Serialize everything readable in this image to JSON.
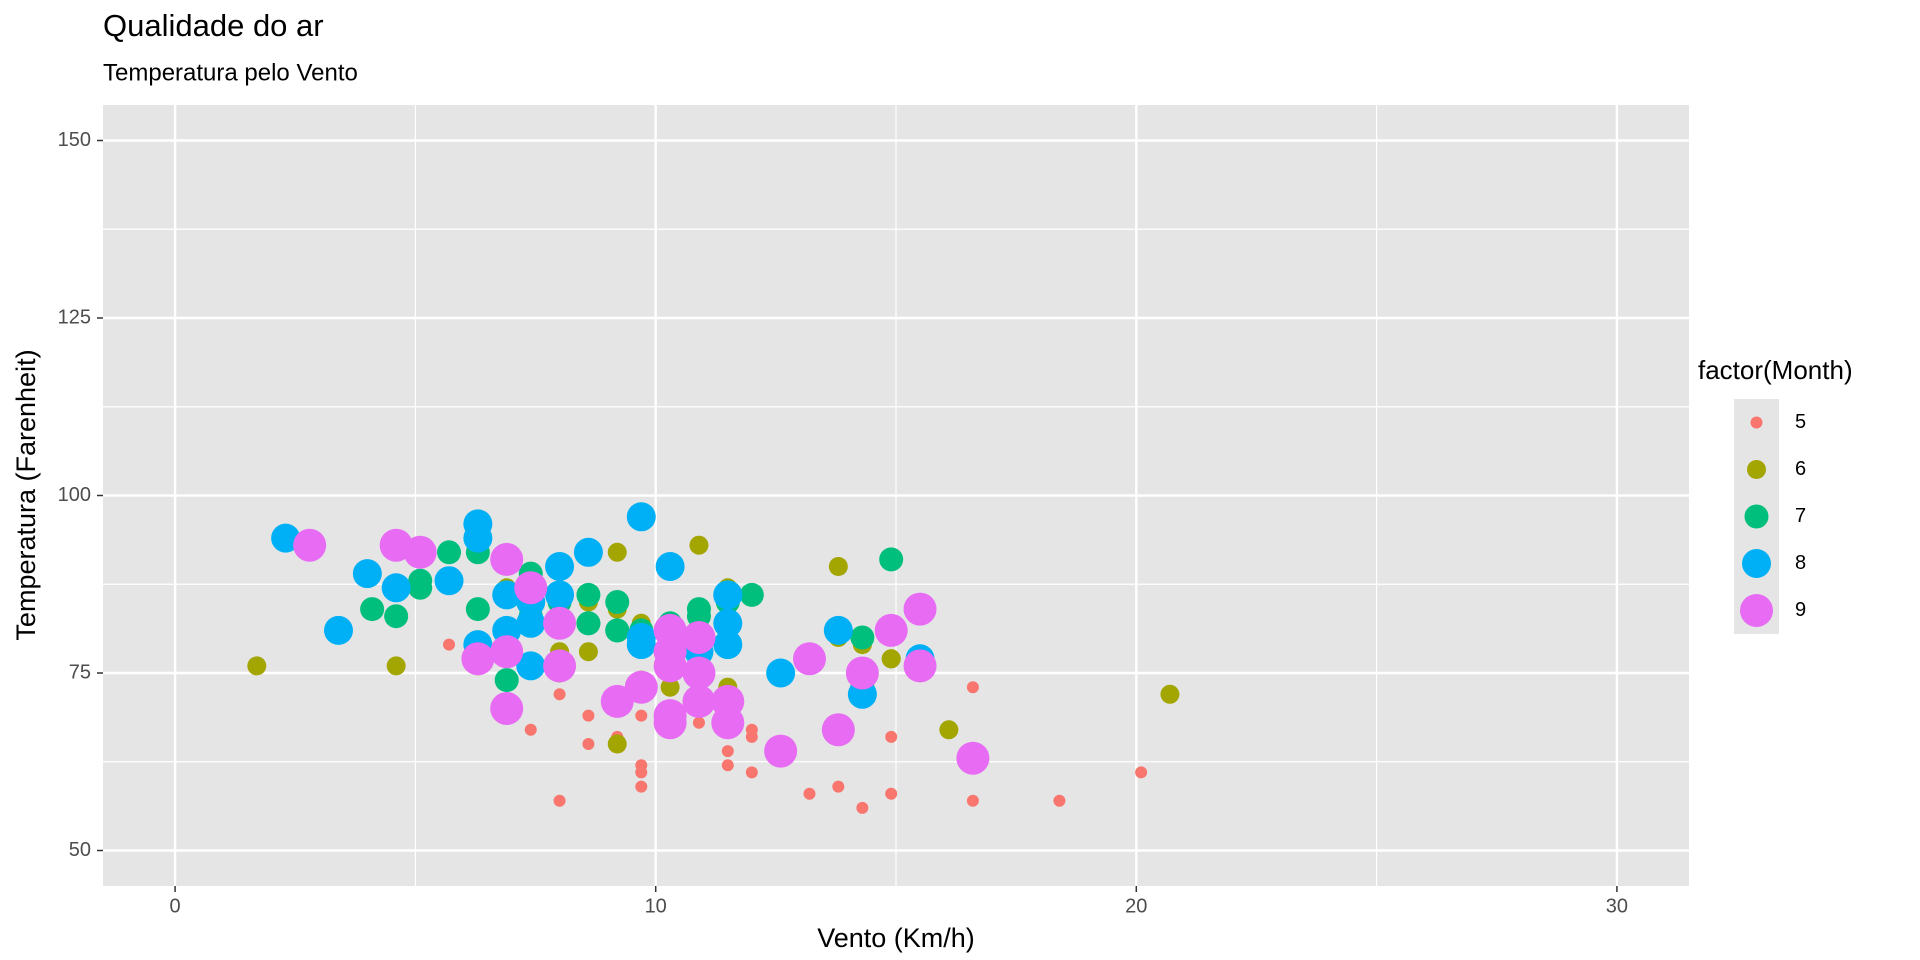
{
  "chart_data": {
    "type": "scatter",
    "title": "Qualidade do ar",
    "subtitle": "Temperatura pelo Vento",
    "x_label": "Vento (Km/h)",
    "y_label": "Temperatura (Farenheit)",
    "legend_title": "factor(Month)",
    "legend": "right",
    "grid": true,
    "xlim": [
      -1.5,
      31.5
    ],
    "ylim": [
      45,
      155
    ],
    "xticks": [
      0,
      10,
      20,
      30
    ],
    "yticks": [
      50,
      75,
      100,
      125,
      150
    ],
    "series": [
      {
        "name": "5",
        "color": "#F8766D",
        "x": [
          7.4,
          8.0,
          12.6,
          11.5,
          14.3,
          14.9,
          8.6,
          13.8,
          20.1,
          8.6,
          6.9,
          9.7,
          9.2,
          10.9,
          13.2,
          11.5,
          12.0,
          18.4,
          11.5,
          9.7,
          9.7,
          16.6,
          9.7,
          12.0,
          16.6,
          14.9,
          8.0,
          12.0,
          14.9,
          5.7,
          7.4
        ],
        "values": [
          67,
          72,
          74,
          62,
          56,
          66,
          65,
          59,
          61,
          69,
          74,
          69,
          66,
          68,
          58,
          64,
          66,
          57,
          68,
          62,
          59,
          73,
          61,
          61,
          57,
          58,
          57,
          67,
          81,
          79,
          76
        ]
      },
      {
        "name": "6",
        "color": "#A3A500",
        "x": [
          8.6,
          9.7,
          16.1,
          9.2,
          8.6,
          14.3,
          9.7,
          6.9,
          13.8,
          11.5,
          10.9,
          9.2,
          8.0,
          13.8,
          11.5,
          14.9,
          20.7,
          9.2,
          11.5,
          10.3,
          6.3,
          1.7,
          4.6,
          6.3,
          8.0,
          8.0,
          10.3,
          11.5,
          14.9,
          8.0
        ],
        "values": [
          78,
          74,
          67,
          84,
          85,
          79,
          82,
          87,
          90,
          87,
          93,
          92,
          82,
          80,
          79,
          77,
          72,
          65,
          73,
          76,
          77,
          76,
          76,
          76,
          75,
          78,
          73,
          80,
          77,
          83
        ]
      },
      {
        "name": "7",
        "color": "#00BF7D",
        "x": [
          4.1,
          9.2,
          9.2,
          10.9,
          4.6,
          10.9,
          5.1,
          6.3,
          5.7,
          7.4,
          8.6,
          14.3,
          14.9,
          14.9,
          14.3,
          6.9,
          10.3,
          6.3,
          5.1,
          11.5,
          6.9,
          9.7,
          11.5,
          8.6,
          8.0,
          8.6,
          12.0,
          7.4,
          7.4,
          7.4,
          9.2
        ],
        "values": [
          84,
          85,
          81,
          84,
          83,
          83,
          88,
          92,
          92,
          89,
          82,
          73,
          81,
          91,
          80,
          81,
          82,
          84,
          87,
          85,
          74,
          81,
          82,
          86,
          85,
          82,
          86,
          88,
          86,
          83,
          81
        ]
      },
      {
        "name": "8",
        "color": "#00B0F6",
        "x": [
          6.9,
          13.8,
          7.4,
          6.9,
          7.4,
          4.6,
          4.0,
          10.3,
          8.0,
          8.6,
          11.5,
          11.5,
          11.5,
          9.7,
          11.5,
          10.3,
          6.3,
          7.4,
          10.9,
          10.3,
          15.5,
          14.3,
          12.6,
          9.7,
          3.4,
          8.0,
          5.7,
          9.7,
          2.3,
          6.3,
          6.3
        ],
        "values": [
          81,
          81,
          82,
          86,
          85,
          87,
          89,
          90,
          90,
          92,
          86,
          86,
          82,
          80,
          79,
          77,
          79,
          76,
          78,
          78,
          77,
          72,
          75,
          79,
          81,
          86,
          88,
          97,
          94,
          96,
          94
        ]
      },
      {
        "name": "9",
        "color": "#E76BF3",
        "x": [
          6.9,
          5.1,
          2.8,
          4.6,
          7.4,
          15.5,
          10.9,
          10.3,
          10.9,
          9.7,
          14.9,
          15.5,
          6.3,
          10.9,
          11.5,
          6.9,
          13.8,
          10.3,
          10.3,
          8.0,
          12.6,
          9.2,
          10.3,
          10.3,
          16.6,
          6.9,
          13.2,
          14.3,
          8.0,
          11.5
        ],
        "values": [
          91,
          92,
          93,
          93,
          87,
          84,
          80,
          78,
          75,
          73,
          81,
          76,
          77,
          71,
          71,
          78,
          67,
          76,
          68,
          82,
          64,
          71,
          81,
          69,
          63,
          70,
          77,
          75,
          76,
          68
        ]
      }
    ]
  }
}
